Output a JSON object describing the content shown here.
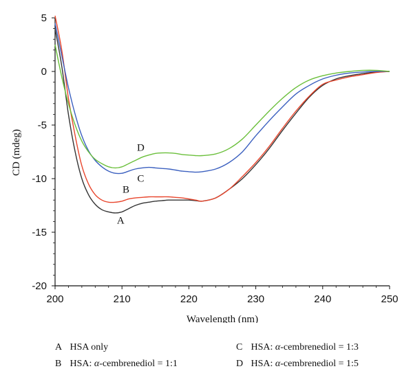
{
  "chart_data": {
    "type": "line",
    "xlabel": "Wavelength (nm)",
    "ylabel": "CD (mdeg)",
    "xlim": [
      200,
      250
    ],
    "ylim": [
      -20,
      5
    ],
    "xticks": [
      200,
      210,
      220,
      230,
      240,
      250
    ],
    "yticks": [
      5,
      0,
      -5,
      -10,
      -15,
      -20
    ],
    "grid": false,
    "series": [
      {
        "name": "A",
        "color": "#333333",
        "x": [
          200,
          201,
          202,
          203,
          204,
          205,
          206,
          207,
          208,
          209,
          210,
          211,
          212,
          213,
          214,
          215,
          216,
          217,
          218,
          219,
          220,
          221,
          222,
          224,
          226,
          228,
          230,
          232,
          234,
          236,
          238,
          240,
          242,
          244,
          246,
          248,
          250
        ],
        "y": [
          4.0,
          0.5,
          -4.0,
          -7.5,
          -10.0,
          -11.5,
          -12.4,
          -12.9,
          -13.1,
          -13.2,
          -13.1,
          -12.8,
          -12.5,
          -12.3,
          -12.2,
          -12.1,
          -12.05,
          -12.0,
          -12.0,
          -12.0,
          -12.0,
          -12.05,
          -12.1,
          -11.8,
          -11.0,
          -10.0,
          -8.7,
          -7.2,
          -5.5,
          -3.9,
          -2.4,
          -1.3,
          -0.7,
          -0.4,
          -0.2,
          -0.05,
          0.0
        ]
      },
      {
        "name": "B",
        "color": "#e8452c",
        "x": [
          200,
          201,
          202,
          203,
          204,
          205,
          206,
          207,
          208,
          209,
          210,
          211,
          212,
          213,
          214,
          215,
          216,
          217,
          218,
          219,
          220,
          221,
          222,
          224,
          226,
          228,
          230,
          232,
          234,
          236,
          238,
          240,
          242,
          244,
          246,
          248,
          250
        ],
        "y": [
          5.2,
          2.0,
          -2.5,
          -6.0,
          -8.8,
          -10.5,
          -11.5,
          -12.0,
          -12.2,
          -12.2,
          -12.1,
          -11.9,
          -11.8,
          -11.75,
          -11.7,
          -11.7,
          -11.7,
          -11.7,
          -11.75,
          -11.8,
          -11.9,
          -12.0,
          -12.1,
          -11.8,
          -11.0,
          -9.8,
          -8.5,
          -7.0,
          -5.3,
          -3.7,
          -2.3,
          -1.2,
          -0.8,
          -0.5,
          -0.3,
          -0.1,
          0.0
        ]
      },
      {
        "name": "C",
        "color": "#3a5fbf",
        "x": [
          200,
          201,
          202,
          203,
          204,
          205,
          206,
          207,
          208,
          209,
          210,
          211,
          212,
          213,
          214,
          215,
          216,
          217,
          218,
          219,
          220,
          221,
          222,
          224,
          226,
          228,
          230,
          232,
          234,
          236,
          238,
          240,
          242,
          244,
          246,
          248,
          250
        ],
        "y": [
          4.5,
          1.5,
          -1.5,
          -4.0,
          -6.0,
          -7.4,
          -8.3,
          -8.9,
          -9.3,
          -9.5,
          -9.5,
          -9.3,
          -9.1,
          -9.0,
          -8.95,
          -9.0,
          -9.05,
          -9.1,
          -9.2,
          -9.3,
          -9.35,
          -9.4,
          -9.35,
          -9.1,
          -8.5,
          -7.5,
          -6.0,
          -4.6,
          -3.3,
          -2.1,
          -1.3,
          -0.7,
          -0.35,
          -0.15,
          -0.05,
          0.0,
          0.0
        ]
      },
      {
        "name": "D",
        "color": "#6abf3a",
        "x": [
          200,
          201,
          202,
          203,
          204,
          205,
          206,
          207,
          208,
          209,
          210,
          211,
          212,
          213,
          214,
          215,
          216,
          217,
          218,
          219,
          220,
          221,
          222,
          224,
          226,
          228,
          230,
          232,
          234,
          236,
          238,
          240,
          242,
          244,
          246,
          248,
          250
        ],
        "y": [
          2.5,
          -0.5,
          -3.0,
          -5.0,
          -6.5,
          -7.5,
          -8.2,
          -8.6,
          -8.9,
          -9.0,
          -8.9,
          -8.6,
          -8.3,
          -8.0,
          -7.8,
          -7.65,
          -7.6,
          -7.6,
          -7.65,
          -7.75,
          -7.8,
          -7.85,
          -7.85,
          -7.7,
          -7.2,
          -6.3,
          -5.0,
          -3.7,
          -2.5,
          -1.5,
          -0.8,
          -0.4,
          -0.15,
          0.0,
          0.1,
          0.1,
          0.0
        ]
      }
    ],
    "annotations": [
      {
        "text": "A",
        "x": 209.8,
        "y": -14.2
      },
      {
        "text": "B",
        "x": 210.6,
        "y": -11.3
      },
      {
        "text": "C",
        "x": 212.8,
        "y": -10.3
      },
      {
        "text": "D",
        "x": 212.8,
        "y": -7.4
      }
    ]
  },
  "legend": {
    "entries": [
      {
        "key": "A",
        "text": "HSA only",
        "prefix": "",
        "italic": "",
        "suffix": ""
      },
      {
        "key": "C",
        "text": "",
        "prefix": "HSA: ",
        "italic": "α",
        "suffix": "-cembrenediol = 1:3"
      },
      {
        "key": "B",
        "text": "",
        "prefix": "HSA: ",
        "italic": "α",
        "suffix": "-cembrenediol = 1:1"
      },
      {
        "key": "D",
        "text": "",
        "prefix": "HSA: ",
        "italic": "α",
        "suffix": "-cembrenediol = 1:5"
      }
    ]
  }
}
